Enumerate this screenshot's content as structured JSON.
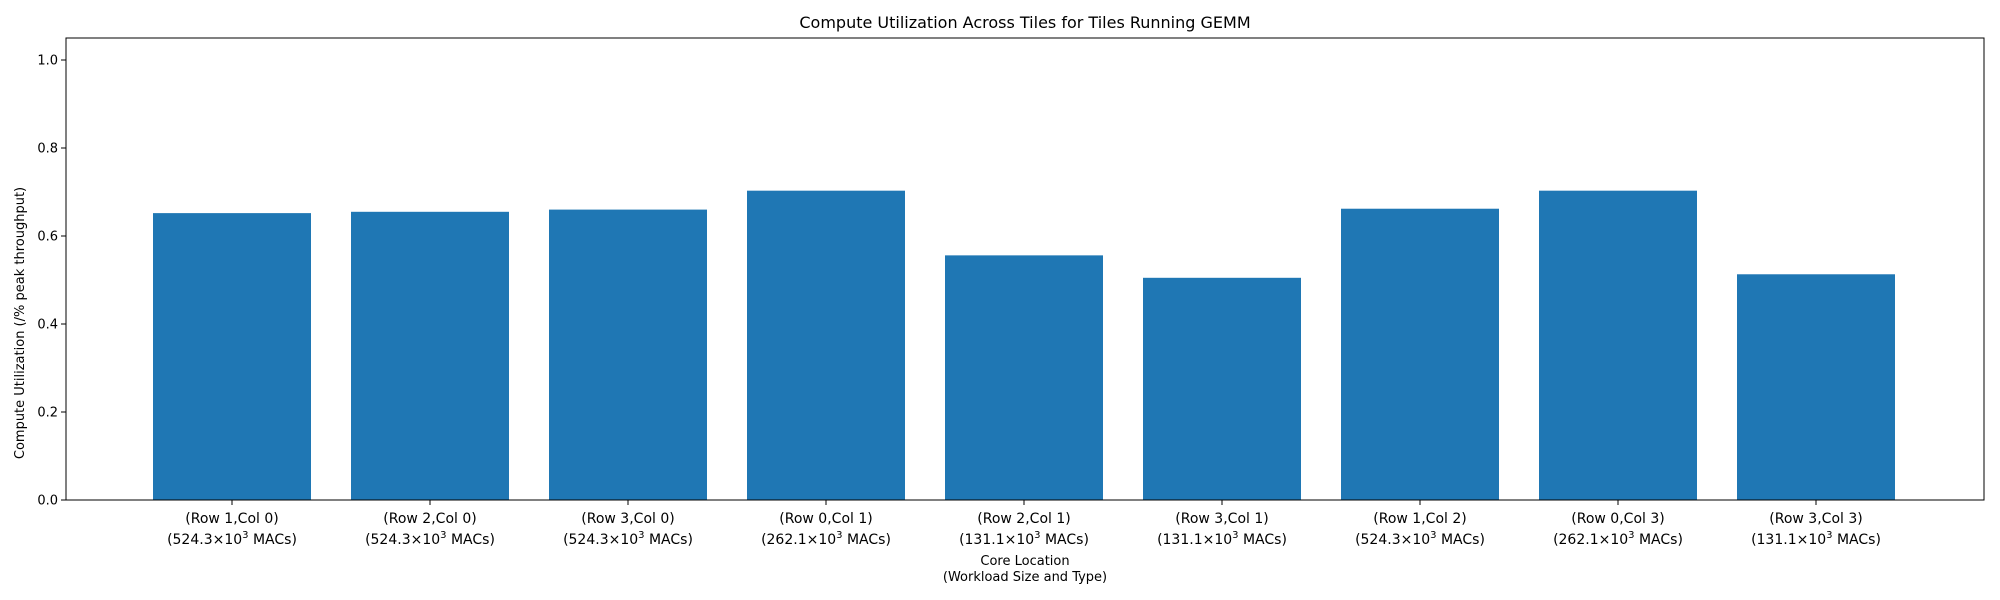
{
  "chart_data": {
    "type": "bar",
    "title": "Compute Utilization Across Tiles for Tiles Running GEMM",
    "xlabel": [
      "Core Location",
      "(Workload Size and Type)"
    ],
    "ylabel": "Compute Utilization (/% peak throughput)",
    "ylim": [
      0.0,
      1.05
    ],
    "yticks": [
      "0.0",
      "0.2",
      "0.4",
      "0.6",
      "0.8",
      "1.0"
    ],
    "categories": [
      {
        "line1": "(Row 1,Col 0)",
        "mant": "(524.3×10",
        "exp": "3",
        "rest": " MACs)"
      },
      {
        "line1": "(Row 2,Col 0)",
        "mant": "(524.3×10",
        "exp": "3",
        "rest": " MACs)"
      },
      {
        "line1": "(Row 3,Col 0)",
        "mant": "(524.3×10",
        "exp": "3",
        "rest": " MACs)"
      },
      {
        "line1": "(Row 0,Col 1)",
        "mant": "(262.1×10",
        "exp": "3",
        "rest": " MACs)"
      },
      {
        "line1": "(Row 2,Col 1)",
        "mant": "(131.1×10",
        "exp": "3",
        "rest": " MACs)"
      },
      {
        "line1": "(Row 3,Col 1)",
        "mant": "(131.1×10",
        "exp": "3",
        "rest": " MACs)"
      },
      {
        "line1": "(Row 1,Col 2)",
        "mant": "(524.3×10",
        "exp": "3",
        "rest": " MACs)"
      },
      {
        "line1": "(Row 0,Col 3)",
        "mant": "(262.1×10",
        "exp": "3",
        "rest": " MACs)"
      },
      {
        "line1": "(Row 3,Col 3)",
        "mant": "(131.1×10",
        "exp": "3",
        "rest": " MACs)"
      }
    ],
    "values": [
      0.652,
      0.655,
      0.66,
      0.703,
      0.556,
      0.505,
      0.662,
      0.703,
      0.513
    ],
    "bar_color": "#1f77b4",
    "grid": false,
    "legend": false
  }
}
